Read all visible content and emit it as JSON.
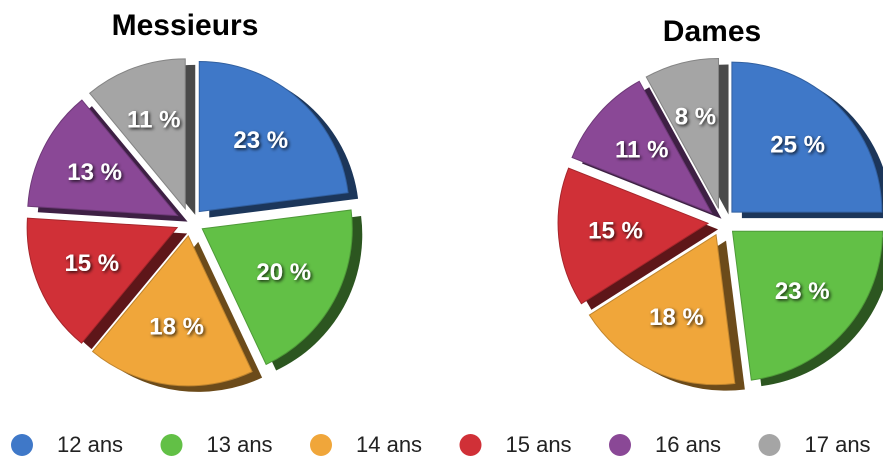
{
  "chart_data": [
    {
      "type": "pie",
      "title": "Messieurs",
      "values": [
        23,
        20,
        18,
        15,
        13,
        11
      ],
      "value_labels": [
        "23 %",
        "20 %",
        "18 %",
        "15 %",
        "13 %",
        "11 %"
      ]
    },
    {
      "type": "pie",
      "title": "Dames",
      "values": [
        25,
        23,
        18,
        15,
        11,
        8
      ],
      "value_labels": [
        "25 %",
        "23 %",
        "18 %",
        "15 %",
        "11 %",
        "8 %"
      ]
    }
  ],
  "legend": {
    "labels": [
      "12 ans",
      "13 ans",
      "14 ans",
      "15 ans",
      "16 ans",
      "17 ans"
    ],
    "colors": [
      "#3f78c8",
      "#62c046",
      "#f0a63a",
      "#d03037",
      "#8a4896",
      "#a5a5a5"
    ]
  }
}
